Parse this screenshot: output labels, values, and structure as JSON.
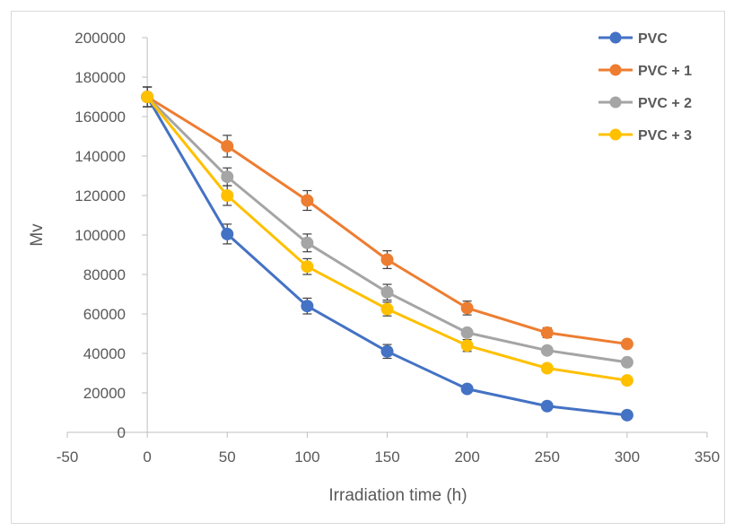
{
  "chart_data": {
    "type": "line",
    "title": "",
    "xlabel": "Irradiation time (h)",
    "ylabel": "Mv",
    "xlim": [
      -50,
      350
    ],
    "ylim": [
      0,
      200000
    ],
    "x_ticks": [
      "-50",
      "0",
      "50",
      "100",
      "150",
      "200",
      "250",
      "300",
      "350"
    ],
    "y_ticks": [
      "0",
      "20000",
      "40000",
      "60000",
      "80000",
      "100000",
      "120000",
      "140000",
      "160000",
      "180000",
      "200000"
    ],
    "x": [
      0,
      50,
      100,
      150,
      200,
      250,
      300
    ],
    "grid": false,
    "legend_position": "top-right",
    "error_bars": true,
    "series": [
      {
        "name": "PVC",
        "color": "#4472C4",
        "values": [
          170000,
          100500,
          64000,
          41000,
          22000,
          13300,
          8700
        ],
        "errors": [
          5000,
          5000,
          4000,
          3500,
          0,
          0,
          0
        ]
      },
      {
        "name": "PVC + 1",
        "color": "#ED7D31",
        "values": [
          170000,
          145000,
          117500,
          87500,
          63000,
          50500,
          44800
        ],
        "errors": [
          5000,
          5500,
          5000,
          4500,
          3500,
          2500,
          2000
        ]
      },
      {
        "name": "PVC + 2",
        "color": "#A5A5A5",
        "values": [
          170000,
          129500,
          96000,
          71000,
          50500,
          41500,
          35500
        ],
        "errors": [
          5000,
          4500,
          4500,
          4000,
          0,
          0,
          0
        ]
      },
      {
        "name": "PVC + 3",
        "color": "#FFC000",
        "values": [
          170000,
          120000,
          84000,
          62500,
          44000,
          32500,
          26300
        ],
        "errors": [
          5000,
          5000,
          4000,
          3500,
          3000,
          0,
          0
        ]
      }
    ]
  }
}
